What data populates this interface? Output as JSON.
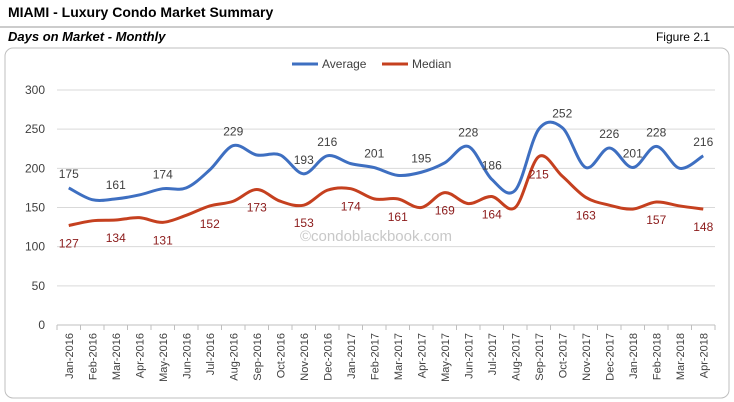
{
  "chart_data": {
    "type": "line",
    "title": "MIAMI - Luxury Condo Market Summary",
    "subtitle": "Days on Market - Monthly",
    "figure_label": "Figure 2.1",
    "watermark": "©condoblackbook.com",
    "categories": [
      "Jan-2016",
      "Feb-2016",
      "Mar-2016",
      "Apr-2016",
      "May-2016",
      "Jun-2016",
      "Jul-2016",
      "Aug-2016",
      "Sep-2016",
      "Oct-2016",
      "Nov-2016",
      "Dec-2016",
      "Jan-2017",
      "Feb-2017",
      "Mar-2017",
      "Apr-2017",
      "May-2017",
      "Jun-2017",
      "Jul-2017",
      "Aug-2017",
      "Sep-2017",
      "Oct-2017",
      "Nov-2017",
      "Dec-2017",
      "Jan-2018",
      "Feb-2018",
      "Mar-2018",
      "Apr-2018"
    ],
    "series": [
      {
        "name": "Average",
        "color": "#3e6fc1",
        "label_color": "#404040",
        "label_position": "above",
        "values": [
          175,
          160,
          161,
          166,
          174,
          175,
          198,
          229,
          217,
          217,
          193,
          216,
          206,
          201,
          191,
          195,
          207,
          228,
          186,
          172,
          250,
          252,
          201,
          226,
          201,
          228,
          200,
          216
        ],
        "value_labels": [
          "175",
          null,
          "161",
          null,
          "174",
          null,
          null,
          "229",
          null,
          null,
          "193",
          "216",
          null,
          "201",
          null,
          "195",
          null,
          "228",
          "186",
          null,
          null,
          "252",
          null,
          "226",
          "201",
          "228",
          null,
          "216"
        ]
      },
      {
        "name": "Median",
        "color": "#c5401f",
        "label_color": "#8b1a1a",
        "label_position": "below",
        "values": [
          127,
          133,
          134,
          137,
          131,
          140,
          152,
          158,
          173,
          158,
          153,
          172,
          174,
          161,
          161,
          150,
          169,
          155,
          164,
          150,
          215,
          190,
          163,
          153,
          148,
          157,
          152,
          148
        ],
        "value_labels": [
          "127",
          null,
          "134",
          null,
          "131",
          null,
          "152",
          null,
          "173",
          null,
          "153",
          null,
          "174",
          null,
          "161",
          null,
          "169",
          null,
          "164",
          null,
          "215",
          null,
          "163",
          null,
          null,
          "157",
          null,
          "148"
        ]
      }
    ],
    "ylim": [
      0,
      300
    ],
    "yticks": [
      0,
      50,
      100,
      150,
      200,
      250,
      300
    ],
    "grid": true,
    "smooth": true,
    "legend": "top"
  }
}
